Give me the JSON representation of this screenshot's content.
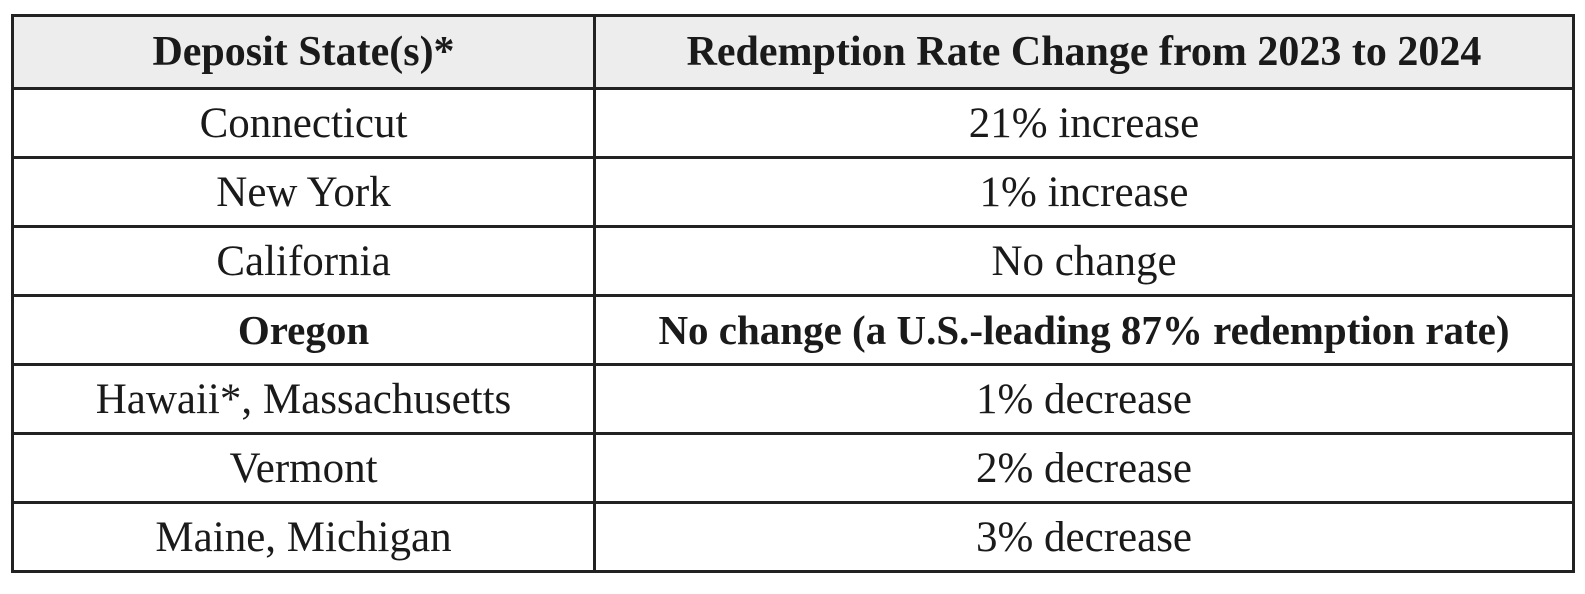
{
  "table": {
    "headers": [
      "Deposit State(s)*",
      "Redemption Rate Change from 2023 to 2024"
    ],
    "rows": [
      {
        "state": "Connecticut",
        "change": "21% increase",
        "bold": false
      },
      {
        "state": "New York",
        "change": "1% increase",
        "bold": false
      },
      {
        "state": "California",
        "change": "No change",
        "bold": false
      },
      {
        "state": "Oregon",
        "change": "No change (a U.S.-leading 87% redemption rate)",
        "bold": true
      },
      {
        "state": "Hawaii*, Massachusetts",
        "change": "1% decrease",
        "bold": false
      },
      {
        "state": "Vermont",
        "change": "2% decrease",
        "bold": false
      },
      {
        "state": "Maine, Michigan",
        "change": "3% decrease",
        "bold": false
      }
    ]
  },
  "colors": {
    "header_background": "#ededed",
    "border": "#222222",
    "text": "#1a1a1a"
  }
}
